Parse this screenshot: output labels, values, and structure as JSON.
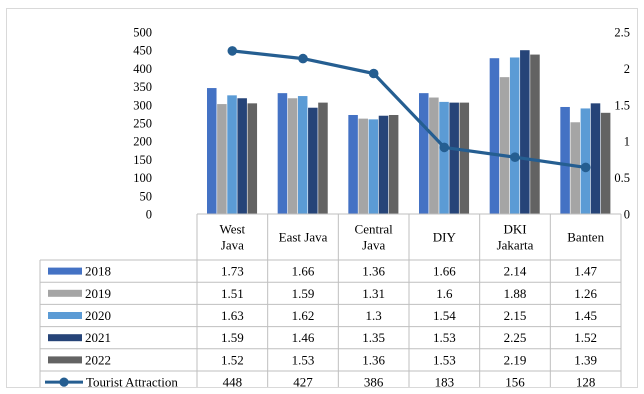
{
  "chart_data": {
    "type": "bar",
    "title": "",
    "categories": [
      [
        "West",
        "Java"
      ],
      [
        "East Java"
      ],
      [
        "Central",
        "Java"
      ],
      [
        "DIY"
      ],
      [
        "DKI",
        "Jakarta"
      ],
      [
        "Banten"
      ]
    ],
    "y_left": {
      "min": 0,
      "max": 500,
      "step": 50
    },
    "y_right": {
      "min": 0,
      "max": 2.5,
      "step": 0.5,
      "labels": [
        "0",
        "0.5",
        "1",
        "1.5",
        "2",
        "2.5"
      ]
    },
    "bar_series": [
      {
        "name": "2018",
        "color": "#4472c4",
        "values": [
          1.73,
          1.66,
          1.36,
          1.66,
          2.14,
          1.47
        ]
      },
      {
        "name": "2019",
        "color": "#a5a5a5",
        "values": [
          1.51,
          1.59,
          1.31,
          1.6,
          1.88,
          1.26
        ]
      },
      {
        "name": "2020",
        "color": "#5b9bd5",
        "values": [
          1.63,
          1.62,
          1.3,
          1.54,
          2.15,
          1.45
        ]
      },
      {
        "name": "2021",
        "color": "#264478",
        "values": [
          1.59,
          1.46,
          1.35,
          1.53,
          2.25,
          1.52
        ]
      },
      {
        "name": "2022",
        "color": "#636363",
        "values": [
          1.52,
          1.53,
          1.36,
          1.53,
          2.19,
          1.39
        ]
      }
    ],
    "line_series": {
      "name": "Tourist Attraction",
      "color": "#255e91",
      "axis": "left",
      "values": [
        448,
        427,
        386,
        183,
        156,
        128
      ]
    },
    "data_table": [
      [
        "1.73",
        "1.66",
        "1.36",
        "1.66",
        "2.14",
        "1.47"
      ],
      [
        "1.51",
        "1.59",
        "1.31",
        "1.6",
        "1.88",
        "1.26"
      ],
      [
        "1.63",
        "1.62",
        "1.3",
        "1.54",
        "2.15",
        "1.45"
      ],
      [
        "1.59",
        "1.46",
        "1.35",
        "1.53",
        "2.25",
        "1.52"
      ],
      [
        "1.52",
        "1.53",
        "1.36",
        "1.53",
        "2.19",
        "1.39"
      ],
      [
        "448",
        "427",
        "386",
        "183",
        "156",
        "128"
      ]
    ]
  }
}
